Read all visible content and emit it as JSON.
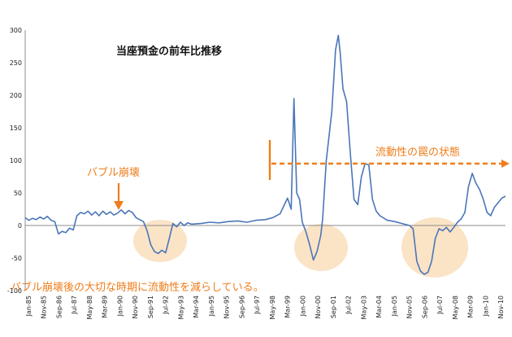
{
  "chart_data": {
    "type": "line",
    "title": "当座預金の前年比推移",
    "xlabel": "",
    "ylabel": "",
    "ylim": [
      -100,
      300
    ],
    "y_ticks": [
      300,
      250,
      200,
      150,
      100,
      50,
      0,
      -50,
      -100
    ],
    "grid": false,
    "legend": "none",
    "x_ticks": [
      "Jan-85",
      "Nov-85",
      "Sep-86",
      "Jul-87",
      "May-88",
      "Mar-89",
      "Jan-90",
      "Nov-90",
      "Sep-91",
      "Jul-92",
      "May-93",
      "Mar-94",
      "Jan-95",
      "Nov-95",
      "Sep-96",
      "Jul-97",
      "May-98",
      "Mar-99",
      "Jan-00",
      "Nov-00",
      "Sep-01",
      "Jul-02",
      "May-03",
      "Mar-04",
      "Jan-05",
      "Nov-05",
      "Sep-06",
      "Jul-07",
      "May-08",
      "Mar-09",
      "Jan-10",
      "Nov-10"
    ],
    "series": [
      {
        "color": "#4a76b8",
        "points": [
          [
            1985.0,
            12
          ],
          [
            1985.2,
            8
          ],
          [
            1985.4,
            11
          ],
          [
            1985.6,
            9
          ],
          [
            1985.8,
            13
          ],
          [
            1986.0,
            10
          ],
          [
            1986.2,
            14
          ],
          [
            1986.4,
            8
          ],
          [
            1986.6,
            6
          ],
          [
            1986.8,
            -13
          ],
          [
            1987.0,
            -9
          ],
          [
            1987.2,
            -11
          ],
          [
            1987.4,
            -4
          ],
          [
            1987.6,
            -7
          ],
          [
            1987.8,
            15
          ],
          [
            1988.0,
            20
          ],
          [
            1988.2,
            18
          ],
          [
            1988.4,
            22
          ],
          [
            1988.6,
            16
          ],
          [
            1988.8,
            21
          ],
          [
            1989.0,
            15
          ],
          [
            1989.2,
            22
          ],
          [
            1989.4,
            17
          ],
          [
            1989.6,
            21
          ],
          [
            1989.8,
            16
          ],
          [
            1990.0,
            19
          ],
          [
            1990.2,
            24
          ],
          [
            1990.4,
            18
          ],
          [
            1990.6,
            23
          ],
          [
            1990.8,
            20
          ],
          [
            1991.0,
            12
          ],
          [
            1991.2,
            9
          ],
          [
            1991.4,
            6
          ],
          [
            1991.6,
            -8
          ],
          [
            1991.8,
            -30
          ],
          [
            1992.0,
            -40
          ],
          [
            1992.2,
            -43
          ],
          [
            1992.4,
            -38
          ],
          [
            1992.6,
            -42
          ],
          [
            1992.8,
            -20
          ],
          [
            1993.0,
            3
          ],
          [
            1993.2,
            -2
          ],
          [
            1993.4,
            5
          ],
          [
            1993.6,
            0
          ],
          [
            1993.8,
            4
          ],
          [
            1994.0,
            2
          ],
          [
            1994.5,
            3
          ],
          [
            1995.0,
            5
          ],
          [
            1995.5,
            4
          ],
          [
            1996.0,
            6
          ],
          [
            1996.5,
            7
          ],
          [
            1997.0,
            5
          ],
          [
            1997.5,
            8
          ],
          [
            1998.0,
            9
          ],
          [
            1998.4,
            12
          ],
          [
            1998.8,
            18
          ],
          [
            1999.0,
            30
          ],
          [
            1999.2,
            42
          ],
          [
            1999.4,
            25
          ],
          [
            1999.55,
            195
          ],
          [
            1999.7,
            50
          ],
          [
            1999.85,
            40
          ],
          [
            2000.0,
            5
          ],
          [
            2000.2,
            -10
          ],
          [
            2000.4,
            -30
          ],
          [
            2000.6,
            -53
          ],
          [
            2000.8,
            -40
          ],
          [
            2001.0,
            -15
          ],
          [
            2001.1,
            10
          ],
          [
            2001.3,
            100
          ],
          [
            2001.6,
            175
          ],
          [
            2001.8,
            270
          ],
          [
            2001.95,
            292
          ],
          [
            2002.05,
            265
          ],
          [
            2002.2,
            210
          ],
          [
            2002.4,
            190
          ],
          [
            2002.6,
            110
          ],
          [
            2002.8,
            40
          ],
          [
            2003.0,
            32
          ],
          [
            2003.2,
            75
          ],
          [
            2003.4,
            95
          ],
          [
            2003.6,
            93
          ],
          [
            2003.8,
            40
          ],
          [
            2004.0,
            22
          ],
          [
            2004.2,
            15
          ],
          [
            2004.6,
            8
          ],
          [
            2005.0,
            6
          ],
          [
            2005.4,
            3
          ],
          [
            2005.8,
            0
          ],
          [
            2006.0,
            -5
          ],
          [
            2006.2,
            -55
          ],
          [
            2006.4,
            -70
          ],
          [
            2006.6,
            -75
          ],
          [
            2006.8,
            -72
          ],
          [
            2007.0,
            -55
          ],
          [
            2007.2,
            -20
          ],
          [
            2007.4,
            -5
          ],
          [
            2007.6,
            -8
          ],
          [
            2007.8,
            -3
          ],
          [
            2008.0,
            -10
          ],
          [
            2008.2,
            -3
          ],
          [
            2008.4,
            5
          ],
          [
            2008.6,
            10
          ],
          [
            2008.8,
            20
          ],
          [
            2009.0,
            60
          ],
          [
            2009.2,
            80
          ],
          [
            2009.4,
            65
          ],
          [
            2009.6,
            55
          ],
          [
            2009.8,
            40
          ],
          [
            2010.0,
            20
          ],
          [
            2010.2,
            15
          ],
          [
            2010.4,
            28
          ],
          [
            2010.6,
            35
          ],
          [
            2010.8,
            42
          ],
          [
            2011.0,
            45
          ]
        ]
      }
    ],
    "annotations": [
      {
        "id": "bubble-collapse",
        "text": "バブル崩壊"
      },
      {
        "id": "liquidity-trap",
        "text": "流動性の罠の状態"
      },
      {
        "id": "note",
        "text": "バブル崩壊後の大切な時期に流動性を減らしている。"
      }
    ]
  }
}
